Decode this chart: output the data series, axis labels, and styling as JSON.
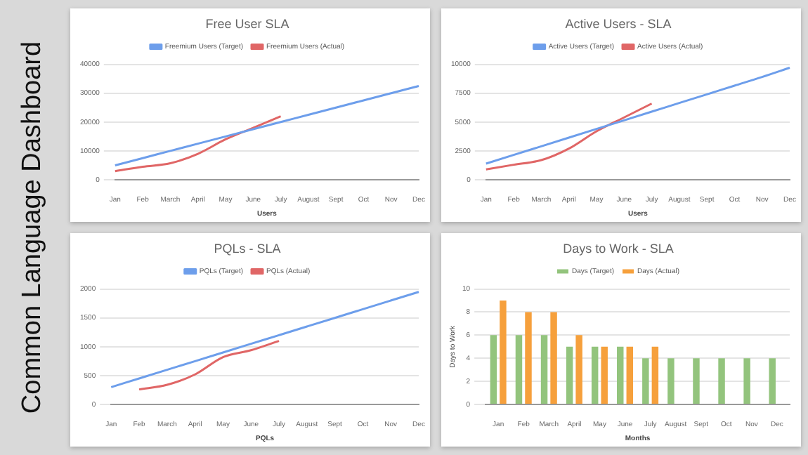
{
  "chart_data": [
    {
      "type": "other",
      "title": "Common Language Dashboard"
    },
    {
      "type": "line",
      "title": "Free User SLA",
      "xlabel": "Users",
      "categories": [
        "Jan",
        "Feb",
        "March",
        "April",
        "May",
        "June",
        "July",
        "August",
        "Sept",
        "Oct",
        "Nov",
        "Dec"
      ],
      "series": [
        {
          "name": "Freemium Users (Target)",
          "color": "#6d9eeb",
          "values": [
            5000,
            7500,
            10000,
            12500,
            15000,
            17500,
            20000,
            22500,
            25000,
            27500,
            30000,
            32500
          ]
        },
        {
          "name": "Freemium Users (Actual)",
          "color": "#e06666",
          "values": [
            3000,
            4500,
            5700,
            9000,
            14000,
            18000,
            22000,
            null,
            null,
            null,
            null,
            null
          ]
        }
      ],
      "ylim": [
        0,
        40000
      ],
      "yticks": [
        0,
        10000,
        20000,
        30000,
        40000
      ],
      "grid": "y",
      "legend": "top"
    },
    {
      "type": "line",
      "title": "Active Users - SLA",
      "xlabel": "Users",
      "categories": [
        "Jan",
        "Feb",
        "March",
        "April",
        "May",
        "June",
        "July",
        "August",
        "Sept",
        "Oct",
        "Nov",
        "Dec"
      ],
      "series": [
        {
          "name": "Active Users (Target)",
          "color": "#6d9eeb",
          "values": [
            1400,
            2150,
            2900,
            3650,
            4400,
            5150,
            5900,
            6650,
            7400,
            8150,
            8900,
            9700
          ]
        },
        {
          "name": "Active Users (Actual)",
          "color": "#e06666",
          "values": [
            900,
            1300,
            1700,
            2700,
            4200,
            5400,
            6600,
            null,
            null,
            null,
            null,
            null
          ]
        }
      ],
      "ylim": [
        0,
        10000
      ],
      "yticks": [
        0,
        2500,
        5000,
        7500,
        10000
      ],
      "grid": "y",
      "legend": "top"
    },
    {
      "type": "line",
      "title": "PQLs - SLA",
      "xlabel": "PQLs",
      "categories": [
        "Jan",
        "Feb",
        "March",
        "April",
        "May",
        "June",
        "July",
        "August",
        "Sept",
        "Oct",
        "Nov",
        "Dec"
      ],
      "series": [
        {
          "name": "PQLs (Target)",
          "color": "#6d9eeb",
          "values": [
            300,
            450,
            600,
            750,
            900,
            1050,
            1200,
            1350,
            1500,
            1650,
            1800,
            1950
          ]
        },
        {
          "name": "PQLs (Actual)",
          "color": "#e06666",
          "values": [
            null,
            260,
            340,
            520,
            820,
            940,
            1100,
            null,
            null,
            null,
            null,
            null
          ]
        }
      ],
      "ylim": [
        0,
        2000
      ],
      "yticks": [
        0,
        500,
        1000,
        1500,
        2000
      ],
      "grid": "y",
      "legend": "top"
    },
    {
      "type": "bar",
      "title": "Days to Work - SLA",
      "xlabel": "Months",
      "ylabel": "Days to Work",
      "categories": [
        "Jan",
        "Feb",
        "March",
        "April",
        "May",
        "June",
        "July",
        "August",
        "Sept",
        "Oct",
        "Nov",
        "Dec"
      ],
      "series": [
        {
          "name": "Days (Target)",
          "color": "#93c47d",
          "values": [
            6,
            6,
            6,
            5,
            5,
            5,
            4,
            4,
            4,
            4,
            4,
            4
          ]
        },
        {
          "name": "Days (Actual)",
          "color": "#f6a03c",
          "values": [
            9,
            8,
            8,
            6,
            5,
            5,
            5,
            null,
            null,
            null,
            null,
            null
          ]
        }
      ],
      "ylim": [
        0,
        10
      ],
      "yticks": [
        0,
        2,
        4,
        6,
        8,
        10
      ],
      "grid": "y",
      "legend": "top"
    }
  ]
}
